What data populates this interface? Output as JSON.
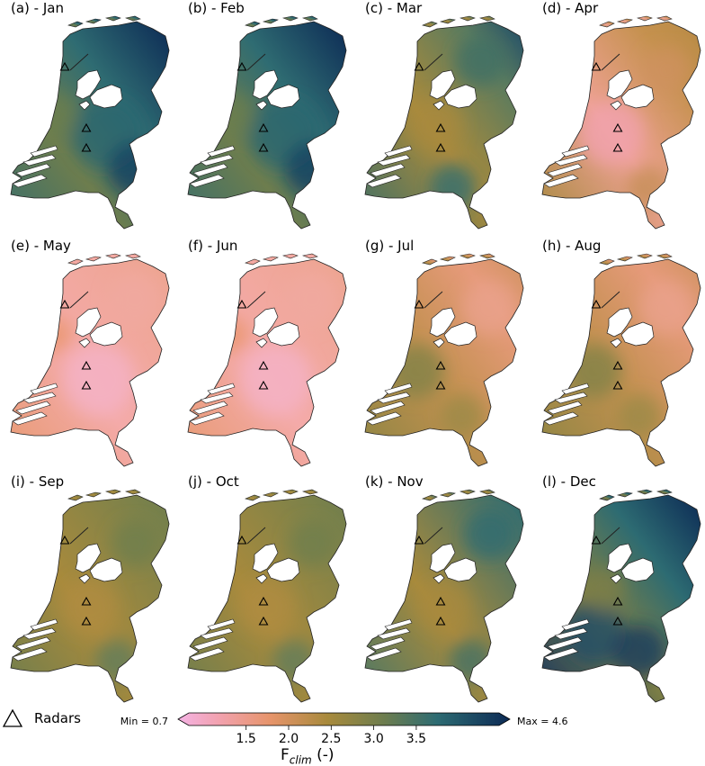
{
  "colors": {
    "low": "#f4b3e4",
    "mid_low": "#e6946a",
    "mid": "#a88a3c",
    "mid_high": "#5b7b5e",
    "high": "#2d6b72",
    "max": "#0c2a55",
    "radar": "#000000"
  },
  "panels": [
    {
      "label": "(a) - Jan",
      "field": "winter"
    },
    {
      "label": "(b) - Feb",
      "field": "winter"
    },
    {
      "label": "(c) - Mar",
      "field": "transition"
    },
    {
      "label": "(d) - Apr",
      "field": "spring"
    },
    {
      "label": "(e) - May",
      "field": "summer_low"
    },
    {
      "label": "(f) - Jun",
      "field": "summer_low"
    },
    {
      "label": "(g) - Jul",
      "field": "summer_mid"
    },
    {
      "label": "(h) - Aug",
      "field": "summer_mid"
    },
    {
      "label": "(i) - Sep",
      "field": "autumn"
    },
    {
      "label": "(j) - Oct",
      "field": "autumn"
    },
    {
      "label": "(k) - Nov",
      "field": "late_autumn"
    },
    {
      "label": "(l) - Dec",
      "field": "winter_strong"
    }
  ],
  "legend": {
    "radar_label": "Radars",
    "radar_icon": "triangle-outline-icon"
  },
  "colorbar": {
    "min_label": "Min = 0.7",
    "max_label": "Max = 4.6",
    "ticks": [
      "1.5",
      "2.0",
      "2.5",
      "3.0",
      "3.5"
    ],
    "title_main": "F",
    "title_sub": "clim",
    "title_unit": " (-)"
  }
}
